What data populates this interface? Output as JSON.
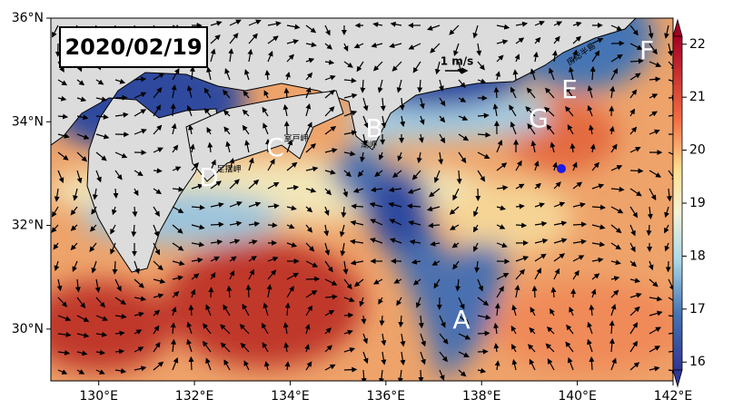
{
  "map": {
    "date": "2020/02/19",
    "xlim": [
      129,
      142
    ],
    "ylim": [
      29,
      36
    ],
    "xticks": [
      {
        "value": 130,
        "label": "130°E"
      },
      {
        "value": 132,
        "label": "132°E"
      },
      {
        "value": 134,
        "label": "134°E"
      },
      {
        "value": 136,
        "label": "136°E"
      },
      {
        "value": 138,
        "label": "138°E"
      },
      {
        "value": 140,
        "label": "140°E"
      },
      {
        "value": 142,
        "label": "142°E"
      }
    ],
    "yticks": [
      {
        "value": 30,
        "label": "30°N"
      },
      {
        "value": 32,
        "label": "32°N"
      },
      {
        "value": 34,
        "label": "34°N"
      },
      {
        "value": 36,
        "label": "36°N"
      }
    ],
    "colorbar": {
      "range": [
        15.85,
        22.15
      ],
      "ticks": [
        16,
        17,
        18,
        19,
        20,
        21,
        22
      ]
    },
    "scale_label": "1 m/s",
    "points": [
      "A",
      "B",
      "C",
      "D",
      "E",
      "F",
      "G"
    ],
    "place_names": [
      "室戸岬",
      "潮岬",
      "足摺岬",
      "房総半島"
    ]
  }
}
